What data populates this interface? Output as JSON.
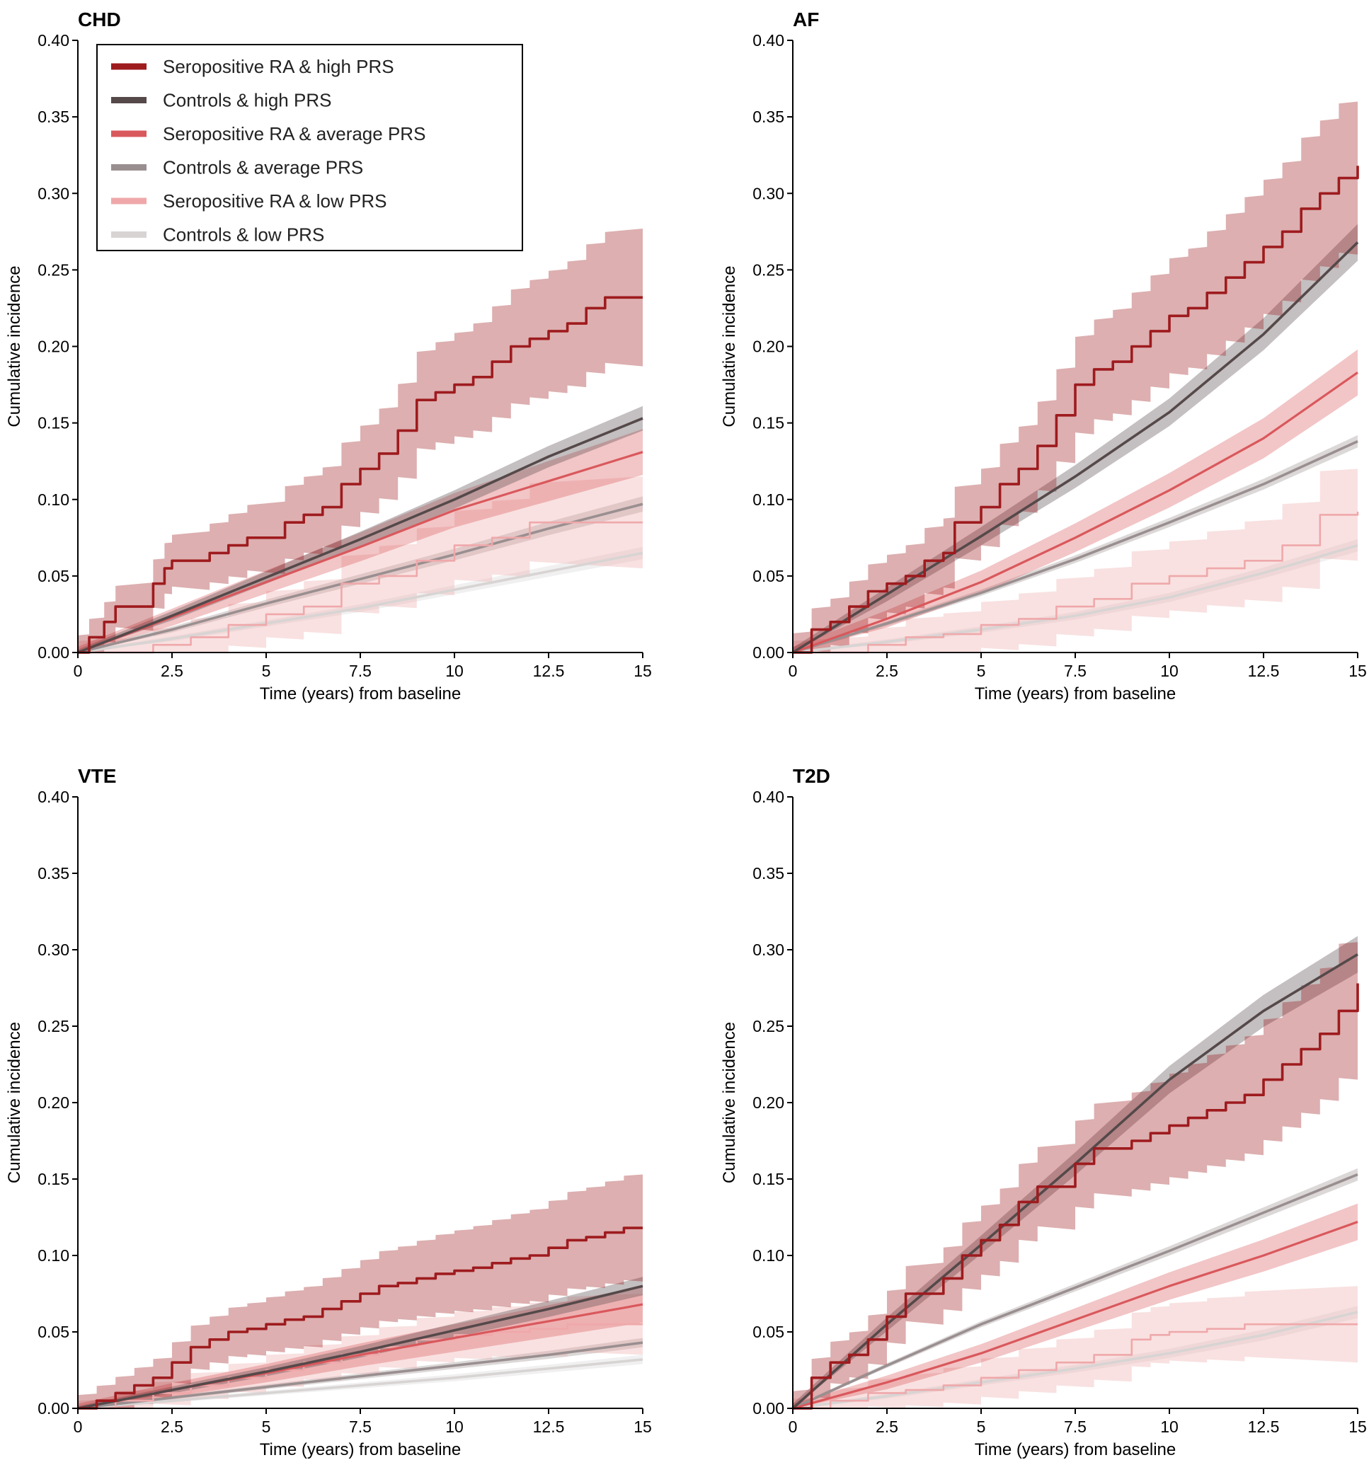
{
  "figure": {
    "legend": {
      "entries": [
        {
          "label": "Seropositive RA & high PRS",
          "color": "#9e1b1e"
        },
        {
          "label": "Controls & high PRS",
          "color": "#55494a"
        },
        {
          "label": "Seropositive RA & average PRS",
          "color": "#d9585c"
        },
        {
          "label": "Controls & average PRS",
          "color": "#9a8f90"
        },
        {
          "label": "Seropositive RA & low PRS",
          "color": "#efa8aa"
        },
        {
          "label": "Controls & low PRS",
          "color": "#d8d4d4"
        }
      ],
      "placement": "top-left of CHD panel"
    }
  },
  "chart_data": [
    {
      "type": "line",
      "title": "CHD",
      "xlabel": "Time (years) from baseline",
      "ylabel": "Cumulative incidence",
      "xlim": [
        0,
        15
      ],
      "ylim": [
        0,
        0.4
      ],
      "xticks": [
        "0",
        "2.5",
        "5",
        "7.5",
        "10",
        "12.5",
        "15"
      ],
      "yticks": [
        "0.00",
        "0.05",
        "0.10",
        "0.15",
        "0.20",
        "0.25",
        "0.30",
        "0.35",
        "0.40"
      ],
      "series": [
        {
          "name": "Seropositive RA & high PRS",
          "step": true,
          "ci": 0.045,
          "x": [
            0,
            0.3,
            0.7,
            1.0,
            1.5,
            2.0,
            2.3,
            2.5,
            3.0,
            3.5,
            4.0,
            4.5,
            5.0,
            5.5,
            6.0,
            6.5,
            7.0,
            7.5,
            8.0,
            8.5,
            9.0,
            9.5,
            10.0,
            10.5,
            11.0,
            11.5,
            12.0,
            12.5,
            13.0,
            13.5,
            14.0,
            15.0
          ],
          "y": [
            0,
            0.01,
            0.02,
            0.03,
            0.03,
            0.045,
            0.055,
            0.06,
            0.06,
            0.065,
            0.07,
            0.075,
            0.075,
            0.085,
            0.09,
            0.095,
            0.11,
            0.12,
            0.13,
            0.145,
            0.165,
            0.17,
            0.175,
            0.18,
            0.19,
            0.2,
            0.205,
            0.21,
            0.215,
            0.225,
            0.232,
            0.232
          ]
        },
        {
          "name": "Controls & high PRS",
          "step": false,
          "ci": 0.008,
          "x": [
            0,
            2.5,
            5,
            7.5,
            10,
            12.5,
            15
          ],
          "y": [
            0,
            0.024,
            0.049,
            0.074,
            0.1,
            0.128,
            0.153
          ]
        },
        {
          "name": "Seropositive RA & average PRS",
          "step": false,
          "ci": 0.015,
          "x": [
            0,
            2.5,
            5,
            7.5,
            10,
            12.5,
            15
          ],
          "y": [
            0,
            0.023,
            0.046,
            0.069,
            0.093,
            0.112,
            0.131
          ]
        },
        {
          "name": "Controls & average PRS",
          "step": false,
          "ci": 0.005,
          "x": [
            0,
            2.5,
            5,
            7.5,
            10,
            12.5,
            15
          ],
          "y": [
            0,
            0.015,
            0.032,
            0.048,
            0.064,
            0.081,
            0.097
          ]
        },
        {
          "name": "Seropositive RA & low PRS",
          "step": true,
          "ci": 0.03,
          "x": [
            0,
            2.0,
            3.0,
            4.0,
            5.0,
            6.0,
            7.0,
            8.0,
            9.0,
            10.0,
            11.0,
            12.0,
            13.0,
            15.0
          ],
          "y": [
            0,
            0.005,
            0.01,
            0.018,
            0.025,
            0.03,
            0.045,
            0.05,
            0.06,
            0.07,
            0.075,
            0.085,
            0.085,
            0.085
          ]
        },
        {
          "name": "Controls & low PRS",
          "step": false,
          "ci": 0.004,
          "x": [
            0,
            2.5,
            5,
            7.5,
            10,
            12.5,
            15
          ],
          "y": [
            0,
            0.009,
            0.019,
            0.029,
            0.041,
            0.053,
            0.065
          ]
        }
      ]
    },
    {
      "type": "line",
      "title": "AF",
      "xlabel": "Time (years) from baseline",
      "ylabel": "Cumulative incidence",
      "xlim": [
        0,
        15
      ],
      "ylim": [
        0,
        0.4
      ],
      "xticks": [
        "0",
        "2.5",
        "5",
        "7.5",
        "10",
        "12.5",
        "15"
      ],
      "yticks": [
        "0.00",
        "0.05",
        "0.10",
        "0.15",
        "0.20",
        "0.25",
        "0.30",
        "0.35",
        "0.40"
      ],
      "series": [
        {
          "name": "Seropositive RA & high PRS",
          "step": true,
          "ci": 0.05,
          "x": [
            0,
            0.5,
            1.0,
            1.5,
            2.0,
            2.5,
            3.0,
            3.5,
            4.0,
            4.3,
            5.0,
            5.5,
            6.0,
            6.5,
            7.0,
            7.5,
            8.0,
            8.5,
            9.0,
            9.5,
            10.0,
            10.5,
            11.0,
            11.5,
            12.0,
            12.5,
            13.0,
            13.5,
            14.0,
            14.5,
            15.0
          ],
          "y": [
            0,
            0.015,
            0.02,
            0.03,
            0.04,
            0.045,
            0.05,
            0.06,
            0.065,
            0.085,
            0.095,
            0.11,
            0.12,
            0.135,
            0.155,
            0.175,
            0.185,
            0.19,
            0.2,
            0.21,
            0.22,
            0.225,
            0.235,
            0.245,
            0.255,
            0.265,
            0.275,
            0.29,
            0.3,
            0.31,
            0.318
          ]
        },
        {
          "name": "Controls & high PRS",
          "step": false,
          "ci": 0.012,
          "x": [
            0,
            2.5,
            5,
            7.5,
            10,
            12.5,
            15
          ],
          "y": [
            0,
            0.038,
            0.076,
            0.115,
            0.157,
            0.208,
            0.268
          ]
        },
        {
          "name": "Seropositive RA & average PRS",
          "step": false,
          "ci": 0.015,
          "x": [
            0,
            2.5,
            5,
            7.5,
            10,
            12.5,
            15
          ],
          "y": [
            0,
            0.022,
            0.046,
            0.075,
            0.106,
            0.14,
            0.183
          ]
        },
        {
          "name": "Controls & average PRS",
          "step": false,
          "ci": 0.004,
          "x": [
            0,
            2.5,
            5,
            7.5,
            10,
            12.5,
            15
          ],
          "y": [
            0,
            0.019,
            0.039,
            0.061,
            0.085,
            0.11,
            0.138
          ]
        },
        {
          "name": "Seropositive RA & low PRS",
          "step": true,
          "ci": 0.03,
          "x": [
            0,
            2.0,
            3.0,
            4.0,
            5.0,
            6.0,
            7.0,
            8.0,
            9.0,
            10.0,
            11.0,
            12.0,
            13.0,
            14.0,
            15.0
          ],
          "y": [
            0,
            0.005,
            0.01,
            0.012,
            0.018,
            0.022,
            0.03,
            0.035,
            0.045,
            0.05,
            0.055,
            0.06,
            0.07,
            0.09,
            0.092
          ]
        },
        {
          "name": "Controls & low PRS",
          "step": false,
          "ci": 0.004,
          "x": [
            0,
            2.5,
            5,
            7.5,
            10,
            12.5,
            15
          ],
          "y": [
            0,
            0.007,
            0.015,
            0.024,
            0.036,
            0.052,
            0.07
          ]
        }
      ]
    },
    {
      "type": "line",
      "title": "VTE",
      "xlabel": "Time (years) from baseline",
      "ylabel": "Cumulative incidence",
      "xlim": [
        0,
        15
      ],
      "ylim": [
        0,
        0.4
      ],
      "xticks": [
        "0",
        "2.5",
        "5",
        "7.5",
        "10",
        "12.5",
        "15"
      ],
      "yticks": [
        "0.00",
        "0.05",
        "0.10",
        "0.15",
        "0.20",
        "0.25",
        "0.30",
        "0.35",
        "0.40"
      ],
      "series": [
        {
          "name": "Seropositive RA & high PRS",
          "step": true,
          "ci": 0.035,
          "x": [
            0,
            0.5,
            1.0,
            1.5,
            2.0,
            2.5,
            3.0,
            3.5,
            4.0,
            4.5,
            5.0,
            5.5,
            6.0,
            6.5,
            7.0,
            7.5,
            8.0,
            8.5,
            9.0,
            9.5,
            10.0,
            10.5,
            11.0,
            11.5,
            12.0,
            12.5,
            13.0,
            13.5,
            14.0,
            14.5,
            15.0
          ],
          "y": [
            0,
            0.005,
            0.01,
            0.015,
            0.02,
            0.03,
            0.04,
            0.045,
            0.05,
            0.052,
            0.055,
            0.058,
            0.06,
            0.065,
            0.07,
            0.075,
            0.08,
            0.082,
            0.085,
            0.088,
            0.09,
            0.092,
            0.095,
            0.098,
            0.1,
            0.105,
            0.11,
            0.112,
            0.115,
            0.118,
            0.118
          ]
        },
        {
          "name": "Controls & high PRS",
          "step": false,
          "ci": 0.006,
          "x": [
            0,
            2.5,
            5,
            7.5,
            10,
            12.5,
            15
          ],
          "y": [
            0,
            0.012,
            0.024,
            0.037,
            0.051,
            0.065,
            0.08
          ]
        },
        {
          "name": "Seropositive RA & average PRS",
          "step": false,
          "ci": 0.012,
          "x": [
            0,
            2.5,
            5,
            7.5,
            10,
            12.5,
            15
          ],
          "y": [
            0,
            0.012,
            0.023,
            0.035,
            0.046,
            0.057,
            0.068
          ]
        },
        {
          "name": "Controls & average PRS",
          "step": false,
          "ci": 0.003,
          "x": [
            0,
            2.5,
            5,
            7.5,
            10,
            12.5,
            15
          ],
          "y": [
            0,
            0.007,
            0.014,
            0.021,
            0.028,
            0.035,
            0.043
          ]
        },
        {
          "name": "Seropositive RA & low PRS",
          "step": true,
          "ci": 0.02,
          "x": [
            0,
            1.0,
            2.0,
            3.0,
            4.0,
            5.0,
            6.0,
            7.0,
            8.0,
            9.0,
            10.0,
            11.0,
            12.0,
            13.0,
            15.0
          ],
          "y": [
            0,
            0.005,
            0.01,
            0.015,
            0.02,
            0.025,
            0.03,
            0.035,
            0.04,
            0.045,
            0.048,
            0.05,
            0.052,
            0.055,
            0.055
          ]
        },
        {
          "name": "Controls & low PRS",
          "step": false,
          "ci": 0.003,
          "x": [
            0,
            2.5,
            5,
            7.5,
            10,
            12.5,
            15
          ],
          "y": [
            0,
            0.005,
            0.01,
            0.015,
            0.02,
            0.026,
            0.032
          ]
        }
      ]
    },
    {
      "type": "line",
      "title": "T2D",
      "xlabel": "Time (years) from baseline",
      "ylabel": "Cumulative incidence",
      "xlim": [
        0,
        15
      ],
      "ylim": [
        0,
        0.4
      ],
      "xticks": [
        "0",
        "2.5",
        "5",
        "7.5",
        "10",
        "12.5",
        "15"
      ],
      "yticks": [
        "0.00",
        "0.05",
        "0.10",
        "0.15",
        "0.20",
        "0.25",
        "0.30",
        "0.35",
        "0.40"
      ],
      "series": [
        {
          "name": "Seropositive RA & high PRS",
          "step": true,
          "ci": 0.045,
          "x": [
            0,
            0.5,
            1.0,
            1.5,
            2.0,
            2.5,
            3.0,
            3.5,
            4.0,
            4.5,
            5.0,
            5.5,
            6.0,
            6.5,
            7.0,
            7.5,
            8.0,
            8.5,
            9.0,
            9.5,
            10.0,
            10.5,
            11.0,
            11.5,
            12.0,
            12.5,
            13.0,
            13.5,
            14.0,
            14.5,
            15.0
          ],
          "y": [
            0,
            0.02,
            0.03,
            0.035,
            0.045,
            0.06,
            0.075,
            0.075,
            0.085,
            0.1,
            0.11,
            0.12,
            0.135,
            0.145,
            0.145,
            0.16,
            0.17,
            0.17,
            0.175,
            0.18,
            0.185,
            0.19,
            0.195,
            0.2,
            0.205,
            0.215,
            0.225,
            0.235,
            0.245,
            0.26,
            0.278
          ]
        },
        {
          "name": "Controls & high PRS",
          "step": false,
          "ci": 0.012,
          "x": [
            0,
            2.5,
            5,
            7.5,
            10,
            12.5,
            15
          ],
          "y": [
            0,
            0.055,
            0.107,
            0.16,
            0.215,
            0.26,
            0.297
          ]
        },
        {
          "name": "Seropositive RA & average PRS",
          "step": false,
          "ci": 0.012,
          "x": [
            0,
            2.5,
            5,
            7.5,
            10,
            12.5,
            15
          ],
          "y": [
            0,
            0.017,
            0.036,
            0.058,
            0.08,
            0.1,
            0.122
          ]
        },
        {
          "name": "Controls & average PRS",
          "step": false,
          "ci": 0.004,
          "x": [
            0,
            2.5,
            5,
            7.5,
            10,
            12.5,
            15
          ],
          "y": [
            0,
            0.028,
            0.055,
            0.079,
            0.103,
            0.128,
            0.153
          ]
        },
        {
          "name": "Seropositive RA & low PRS",
          "step": true,
          "ci": 0.025,
          "x": [
            0,
            1.0,
            2.0,
            3.0,
            4.0,
            5.0,
            6.0,
            7.0,
            8.0,
            9.0,
            9.5,
            10.0,
            11.0,
            12.0,
            13.0,
            15.0
          ],
          "y": [
            0,
            0.005,
            0.01,
            0.012,
            0.015,
            0.02,
            0.025,
            0.03,
            0.035,
            0.045,
            0.048,
            0.05,
            0.052,
            0.055,
            0.055,
            0.055
          ]
        },
        {
          "name": "Controls & low PRS",
          "step": false,
          "ci": 0.004,
          "x": [
            0,
            2.5,
            5,
            7.5,
            10,
            12.5,
            15
          ],
          "y": [
            0,
            0.008,
            0.017,
            0.026,
            0.036,
            0.048,
            0.063
          ]
        }
      ]
    }
  ]
}
